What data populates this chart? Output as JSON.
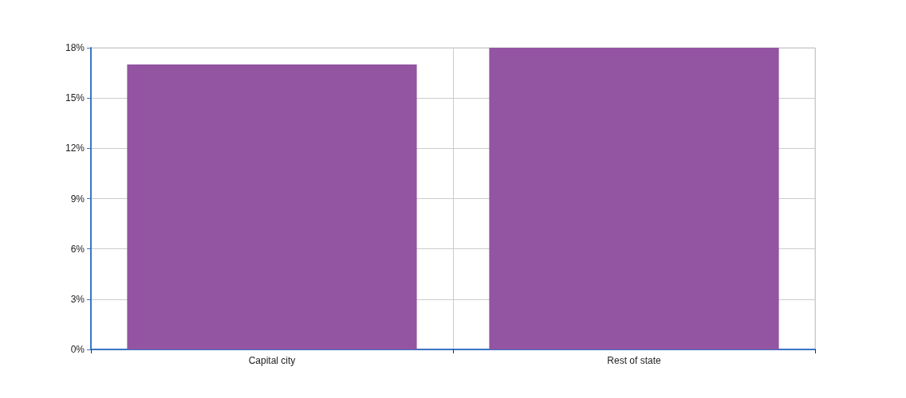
{
  "chart_data": {
    "type": "bar",
    "categories": [
      "Capital city",
      "Rest of state"
    ],
    "values": [
      17,
      18
    ],
    "color": "#9354a1",
    "ylim": [
      0,
      18
    ],
    "yticks": [
      {
        "value": 0,
        "label": "0%"
      },
      {
        "value": 3,
        "label": "3%"
      },
      {
        "value": 6,
        "label": "6%"
      },
      {
        "value": 9,
        "label": "9%"
      },
      {
        "value": 12,
        "label": "12%"
      },
      {
        "value": 15,
        "label": "15%"
      },
      {
        "value": 18,
        "label": "18%"
      }
    ],
    "grid": true
  }
}
